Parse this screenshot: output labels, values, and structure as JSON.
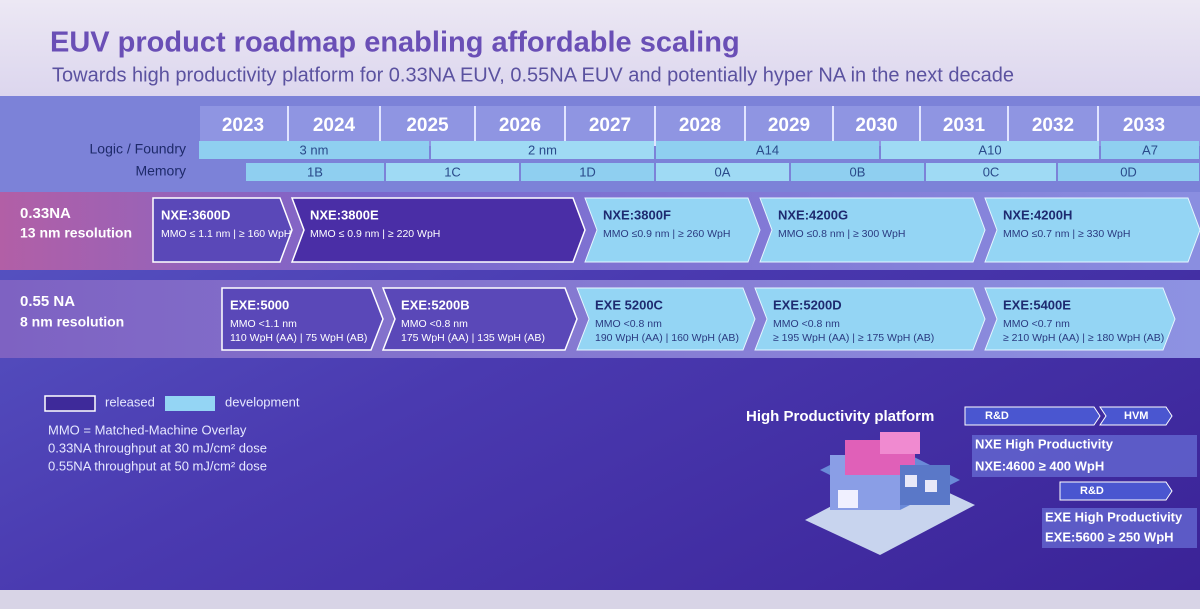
{
  "header": {
    "title": "EUV product roadmap enabling affordable scaling",
    "subtitle": "Towards high productivity platform for 0.33NA EUV, 0.55NA EUV and potentially hyper NA in the next decade"
  },
  "timeline": {
    "years": [
      "2023",
      "2024",
      "2025",
      "2026",
      "2027",
      "2028",
      "2029",
      "2030",
      "2031",
      "2032",
      "2033"
    ],
    "rows": [
      {
        "label": "Logic / Foundry",
        "segments": [
          "3 nm",
          "2 nm",
          "A14",
          "A10",
          "A7"
        ]
      },
      {
        "label": "Memory",
        "segments": [
          "1B",
          "1C",
          "1D",
          "0A",
          "0B",
          "0C",
          "0D"
        ]
      }
    ]
  },
  "platforms": [
    {
      "name": "0.33NA",
      "resolution": "13 nm resolution",
      "products": [
        {
          "name": "NXE:3600D",
          "status": "released",
          "specs": [
            "MMO ≤ 1.1 nm | ≥ 160 WpH"
          ]
        },
        {
          "name": "NXE:3800E",
          "status": "released",
          "specs": [
            "MMO ≤ 0.9 nm | ≥ 220 WpH"
          ]
        },
        {
          "name": "NXE:3800F",
          "status": "development",
          "specs": [
            "MMO ≤0.9 nm | ≥ 260 WpH"
          ]
        },
        {
          "name": "NXE:4200G",
          "status": "development",
          "specs": [
            "MMO ≤0.8 nm | ≥ 300 WpH"
          ]
        },
        {
          "name": "NXE:4200H",
          "status": "development",
          "specs": [
            "MMO ≤0.7 nm | ≥ 330 WpH"
          ]
        }
      ]
    },
    {
      "name": "0.55 NA",
      "resolution": "8 nm resolution",
      "products": [
        {
          "name": "EXE:5000",
          "status": "released",
          "specs": [
            "MMO <1.1 nm",
            "110 WpH (AA) | 75 WpH (AB)"
          ]
        },
        {
          "name": "EXE:5200B",
          "status": "released",
          "specs": [
            "MMO <0.8 nm",
            "175 WpH (AA) | 135 WpH (AB)"
          ]
        },
        {
          "name": "EXE 5200C",
          "status": "development",
          "specs": [
            "MMO <0.8 nm",
            "190 WpH (AA) | 160 WpH (AB)"
          ]
        },
        {
          "name": "EXE:5200D",
          "status": "development",
          "specs": [
            "MMO <0.8 nm",
            "≥ 195 WpH (AA) | ≥ 175 WpH (AB)"
          ]
        },
        {
          "name": "EXE:5400E",
          "status": "development",
          "specs": [
            "MMO <0.7 nm",
            "≥ 210 WpH (AA) | ≥ 180 WpH (AB)"
          ]
        }
      ]
    }
  ],
  "legend": [
    {
      "label": "released",
      "status": "released"
    },
    {
      "label": "development",
      "status": "development"
    }
  ],
  "notes": [
    "MMO = Matched-Machine Overlay",
    "0.33NA throughput at 30 mJ/cm² dose",
    "0.55NA throughput at 50 mJ/cm² dose"
  ],
  "high_productivity": {
    "title": "High Productivity platform",
    "nxe_phases": [
      "R&D",
      "HVM"
    ],
    "nxe_name": "NXE High Productivity",
    "nxe_spec": "NXE:4600 ≥ 400 WpH",
    "exe_phases": [
      "R&D"
    ],
    "exe_name": "EXE High Productivity",
    "exe_spec": "EXE:5600 ≥ 250 WpH"
  }
}
